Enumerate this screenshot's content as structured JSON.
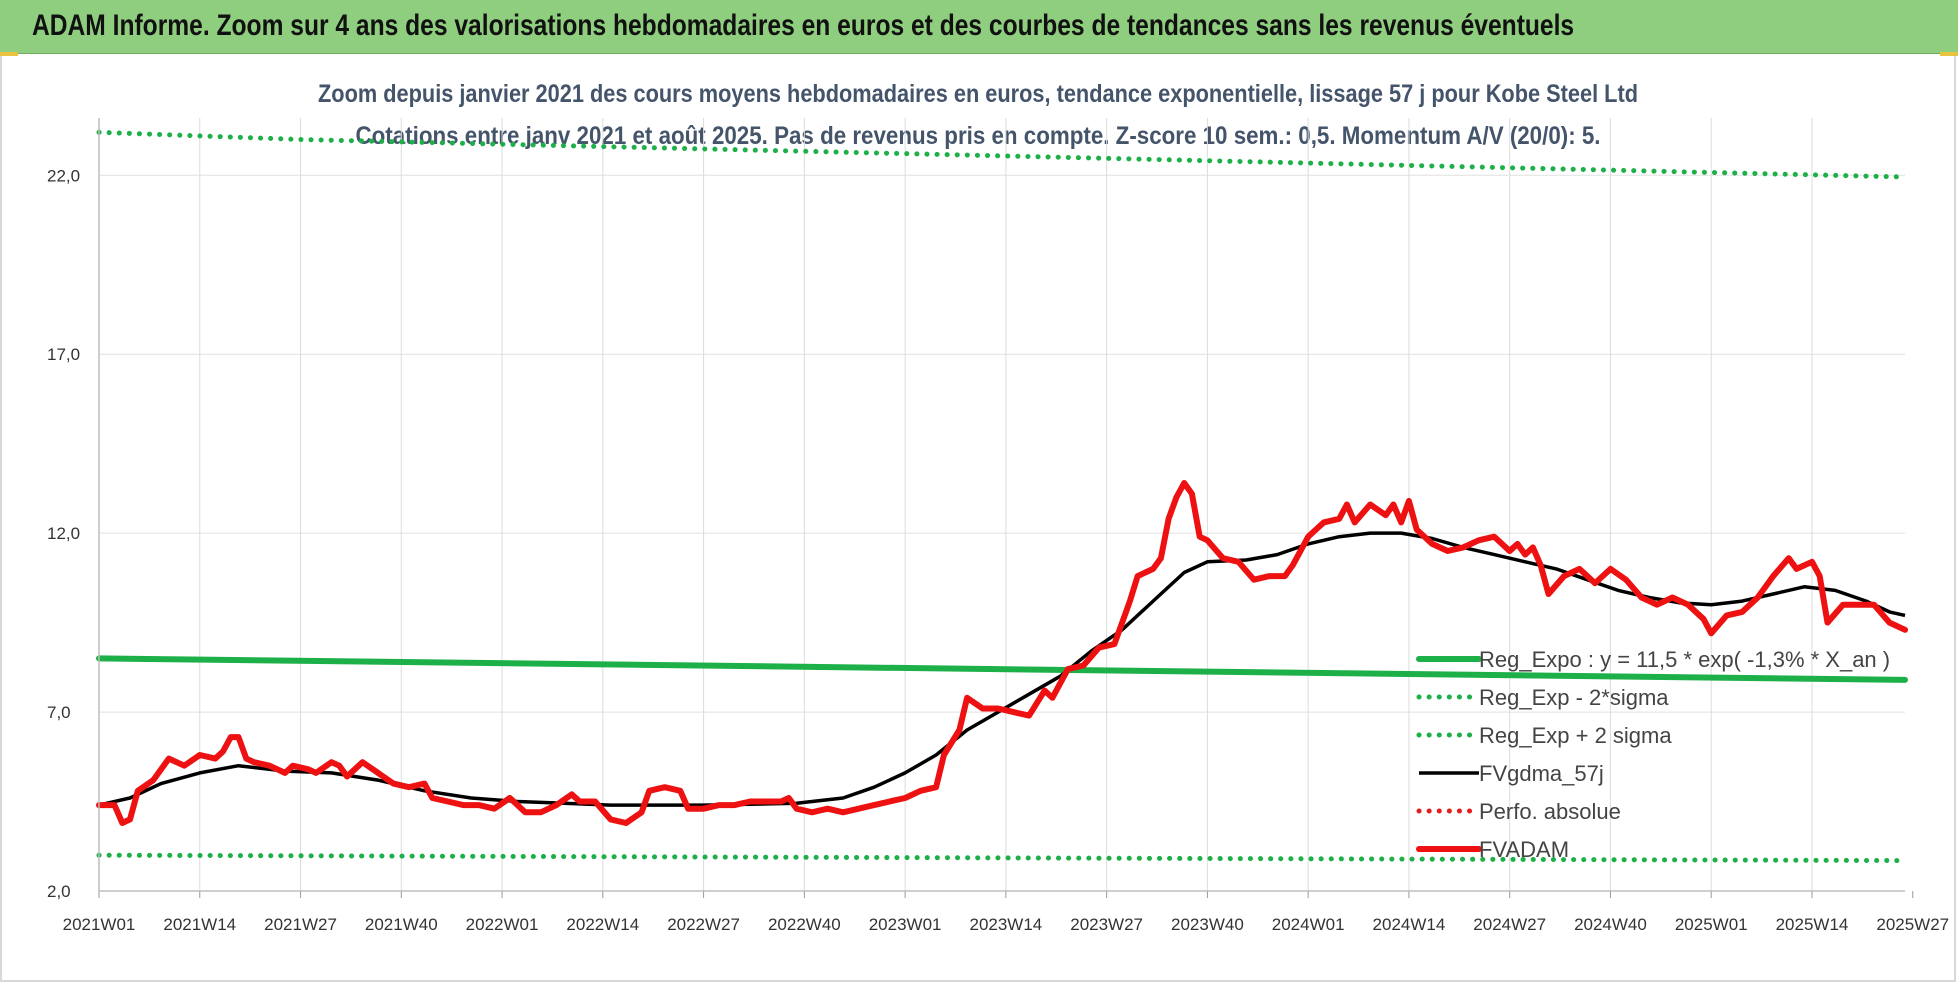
{
  "header": {
    "banner_title": "ADAM Informe. Zoom sur 4 ans des valorisations hebdomadaires en euros et des courbes de tendances sans les revenus éventuels"
  },
  "colors": {
    "banner": "#8fce7f",
    "reg_expo": "#1db048",
    "perfo": "#e0201c",
    "fvadam": "#ee1111",
    "fvgdma": "#000000",
    "subtitle": "#44546a"
  },
  "chart_data": {
    "type": "line",
    "title_line1": "Zoom depuis janvier 2021 des cours moyens hebdomadaires en euros, tendance exponentielle, lissage 57 j pour Kobe Steel Ltd",
    "title_line2": "Cotations entre janv 2021 et août 2025.  Pas de revenus pris en compte. Z-score 10 sem.: 0,5. Momentum A/V (20/0): 5.",
    "xlabel": "",
    "ylabel": "",
    "ylim": [
      2,
      23.6
    ],
    "y_ticks": [
      {
        "value": 2,
        "label": "2,0"
      },
      {
        "value": 7,
        "label": "7,0"
      },
      {
        "value": 12,
        "label": "12,0"
      },
      {
        "value": 17,
        "label": "17,0"
      },
      {
        "value": 22,
        "label": "22,0"
      }
    ],
    "x_range": [
      0,
      233
    ],
    "x_ticks": [
      {
        "week": 0,
        "label": "2021W01"
      },
      {
        "week": 13,
        "label": "2021W14"
      },
      {
        "week": 26,
        "label": "2021W27"
      },
      {
        "week": 39,
        "label": "2021W40"
      },
      {
        "week": 52,
        "label": "2022W01"
      },
      {
        "week": 65,
        "label": "2022W14"
      },
      {
        "week": 78,
        "label": "2022W27"
      },
      {
        "week": 91,
        "label": "2022W40"
      },
      {
        "week": 104,
        "label": "2023W01"
      },
      {
        "week": 117,
        "label": "2023W14"
      },
      {
        "week": 130,
        "label": "2023W27"
      },
      {
        "week": 143,
        "label": "2023W40"
      },
      {
        "week": 156,
        "label": "2024W01"
      },
      {
        "week": 169,
        "label": "2024W14"
      },
      {
        "week": 182,
        "label": "2024W27"
      },
      {
        "week": 195,
        "label": "2024W40"
      },
      {
        "week": 208,
        "label": "2025W01"
      },
      {
        "week": 221,
        "label": "2025W14"
      },
      {
        "week": 234,
        "label": "2025W27"
      }
    ],
    "legend_placement": "bottom-right",
    "grid": "vertical",
    "series": [
      {
        "name": "Reg_Expo : y = 11,5 * exp( -1,3% *  X_an )",
        "style": "solid-thick",
        "color": "#1db048",
        "points": [
          [
            0,
            8.5
          ],
          [
            233,
            7.9
          ]
        ]
      },
      {
        "name": "Reg_Exp - 2*sigma",
        "style": "dotted",
        "color": "#1db048",
        "points": [
          [
            0,
            3.0
          ],
          [
            233,
            2.85
          ]
        ]
      },
      {
        "name": "Reg_Exp + 2 sigma",
        "style": "dotted",
        "color": "#1db048",
        "points": [
          [
            0,
            23.2
          ],
          [
            26,
            23.0
          ],
          [
            233,
            21.95
          ]
        ]
      },
      {
        "name": "FVgdma_57j",
        "style": "solid",
        "color": "#000000",
        "points": [
          [
            0,
            4.4
          ],
          [
            4,
            4.6
          ],
          [
            8,
            5.0
          ],
          [
            13,
            5.3
          ],
          [
            18,
            5.5
          ],
          [
            24,
            5.35
          ],
          [
            30,
            5.3
          ],
          [
            36,
            5.1
          ],
          [
            42,
            4.8
          ],
          [
            48,
            4.6
          ],
          [
            54,
            4.5
          ],
          [
            60,
            4.45
          ],
          [
            66,
            4.4
          ],
          [
            78,
            4.4
          ],
          [
            90,
            4.45
          ],
          [
            96,
            4.6
          ],
          [
            100,
            4.9
          ],
          [
            104,
            5.3
          ],
          [
            108,
            5.8
          ],
          [
            112,
            6.5
          ],
          [
            116,
            7.0
          ],
          [
            120,
            7.5
          ],
          [
            124,
            8.0
          ],
          [
            128,
            8.7
          ],
          [
            132,
            9.3
          ],
          [
            136,
            10.1
          ],
          [
            140,
            10.9
          ],
          [
            143,
            11.2
          ],
          [
            148,
            11.25
          ],
          [
            152,
            11.4
          ],
          [
            156,
            11.7
          ],
          [
            160,
            11.9
          ],
          [
            164,
            12.0
          ],
          [
            168,
            12.0
          ],
          [
            172,
            11.85
          ],
          [
            176,
            11.6
          ],
          [
            180,
            11.4
          ],
          [
            184,
            11.2
          ],
          [
            188,
            11.0
          ],
          [
            192,
            10.7
          ],
          [
            196,
            10.4
          ],
          [
            200,
            10.2
          ],
          [
            204,
            10.05
          ],
          [
            208,
            10.0
          ],
          [
            212,
            10.1
          ],
          [
            216,
            10.3
          ],
          [
            220,
            10.5
          ],
          [
            224,
            10.4
          ],
          [
            228,
            10.1
          ],
          [
            231,
            9.8
          ],
          [
            233,
            9.7
          ]
        ]
      },
      {
        "name": "Perfo. absolue",
        "style": "dotted",
        "color": "#e0201c",
        "points": []
      },
      {
        "name": "FVADAM",
        "style": "solid-thick",
        "color": "#ee1111",
        "points": [
          [
            0,
            4.4
          ],
          [
            2,
            4.4
          ],
          [
            3,
            3.9
          ],
          [
            4,
            4.0
          ],
          [
            5,
            4.8
          ],
          [
            7,
            5.1
          ],
          [
            9,
            5.7
          ],
          [
            11,
            5.5
          ],
          [
            13,
            5.8
          ],
          [
            15,
            5.7
          ],
          [
            16,
            5.9
          ],
          [
            17,
            6.3
          ],
          [
            18,
            6.3
          ],
          [
            19,
            5.7
          ],
          [
            20,
            5.6
          ],
          [
            22,
            5.5
          ],
          [
            24,
            5.3
          ],
          [
            25,
            5.5
          ],
          [
            27,
            5.4
          ],
          [
            28,
            5.3
          ],
          [
            30,
            5.6
          ],
          [
            31,
            5.5
          ],
          [
            32,
            5.2
          ],
          [
            34,
            5.6
          ],
          [
            36,
            5.3
          ],
          [
            38,
            5.0
          ],
          [
            40,
            4.9
          ],
          [
            42,
            5.0
          ],
          [
            43,
            4.6
          ],
          [
            45,
            4.5
          ],
          [
            47,
            4.4
          ],
          [
            49,
            4.4
          ],
          [
            51,
            4.3
          ],
          [
            53,
            4.6
          ],
          [
            55,
            4.2
          ],
          [
            57,
            4.2
          ],
          [
            59,
            4.4
          ],
          [
            61,
            4.7
          ],
          [
            62,
            4.5
          ],
          [
            64,
            4.5
          ],
          [
            66,
            4.0
          ],
          [
            68,
            3.9
          ],
          [
            70,
            4.2
          ],
          [
            71,
            4.8
          ],
          [
            73,
            4.9
          ],
          [
            75,
            4.8
          ],
          [
            76,
            4.3
          ],
          [
            78,
            4.3
          ],
          [
            80,
            4.4
          ],
          [
            82,
            4.4
          ],
          [
            84,
            4.5
          ],
          [
            86,
            4.5
          ],
          [
            88,
            4.5
          ],
          [
            89,
            4.6
          ],
          [
            90,
            4.3
          ],
          [
            92,
            4.2
          ],
          [
            94,
            4.3
          ],
          [
            96,
            4.2
          ],
          [
            98,
            4.3
          ],
          [
            100,
            4.4
          ],
          [
            102,
            4.5
          ],
          [
            104,
            4.6
          ],
          [
            106,
            4.8
          ],
          [
            108,
            4.9
          ],
          [
            109,
            5.8
          ],
          [
            111,
            6.5
          ],
          [
            112,
            7.4
          ],
          [
            114,
            7.1
          ],
          [
            116,
            7.1
          ],
          [
            118,
            7.0
          ],
          [
            120,
            6.9
          ],
          [
            122,
            7.6
          ],
          [
            123,
            7.4
          ],
          [
            125,
            8.2
          ],
          [
            127,
            8.3
          ],
          [
            129,
            8.8
          ],
          [
            131,
            8.9
          ],
          [
            133,
            10.1
          ],
          [
            134,
            10.8
          ],
          [
            136,
            11.0
          ],
          [
            137,
            11.3
          ],
          [
            138,
            12.4
          ],
          [
            139,
            13.0
          ],
          [
            140,
            13.4
          ],
          [
            141,
            13.1
          ],
          [
            142,
            11.9
          ],
          [
            143,
            11.8
          ],
          [
            145,
            11.3
          ],
          [
            147,
            11.2
          ],
          [
            149,
            10.7
          ],
          [
            151,
            10.8
          ],
          [
            153,
            10.8
          ],
          [
            154,
            11.1
          ],
          [
            156,
            11.9
          ],
          [
            158,
            12.3
          ],
          [
            160,
            12.4
          ],
          [
            161,
            12.8
          ],
          [
            162,
            12.3
          ],
          [
            164,
            12.8
          ],
          [
            166,
            12.5
          ],
          [
            167,
            12.8
          ],
          [
            168,
            12.3
          ],
          [
            169,
            12.9
          ],
          [
            170,
            12.1
          ],
          [
            172,
            11.7
          ],
          [
            174,
            11.5
          ],
          [
            176,
            11.6
          ],
          [
            178,
            11.8
          ],
          [
            180,
            11.9
          ],
          [
            182,
            11.5
          ],
          [
            183,
            11.7
          ],
          [
            184,
            11.4
          ],
          [
            185,
            11.6
          ],
          [
            186,
            11.1
          ],
          [
            187,
            10.3
          ],
          [
            189,
            10.8
          ],
          [
            191,
            11.0
          ],
          [
            193,
            10.6
          ],
          [
            195,
            11.0
          ],
          [
            197,
            10.7
          ],
          [
            199,
            10.2
          ],
          [
            201,
            10.0
          ],
          [
            203,
            10.2
          ],
          [
            205,
            10.0
          ],
          [
            207,
            9.6
          ],
          [
            208,
            9.2
          ],
          [
            210,
            9.7
          ],
          [
            212,
            9.8
          ],
          [
            214,
            10.2
          ],
          [
            216,
            10.8
          ],
          [
            218,
            11.3
          ],
          [
            219,
            11.0
          ],
          [
            221,
            11.2
          ],
          [
            222,
            10.8
          ],
          [
            223,
            9.5
          ],
          [
            225,
            10.0
          ],
          [
            227,
            10.0
          ],
          [
            229,
            10.0
          ],
          [
            231,
            9.5
          ],
          [
            233,
            9.3
          ]
        ]
      }
    ]
  }
}
